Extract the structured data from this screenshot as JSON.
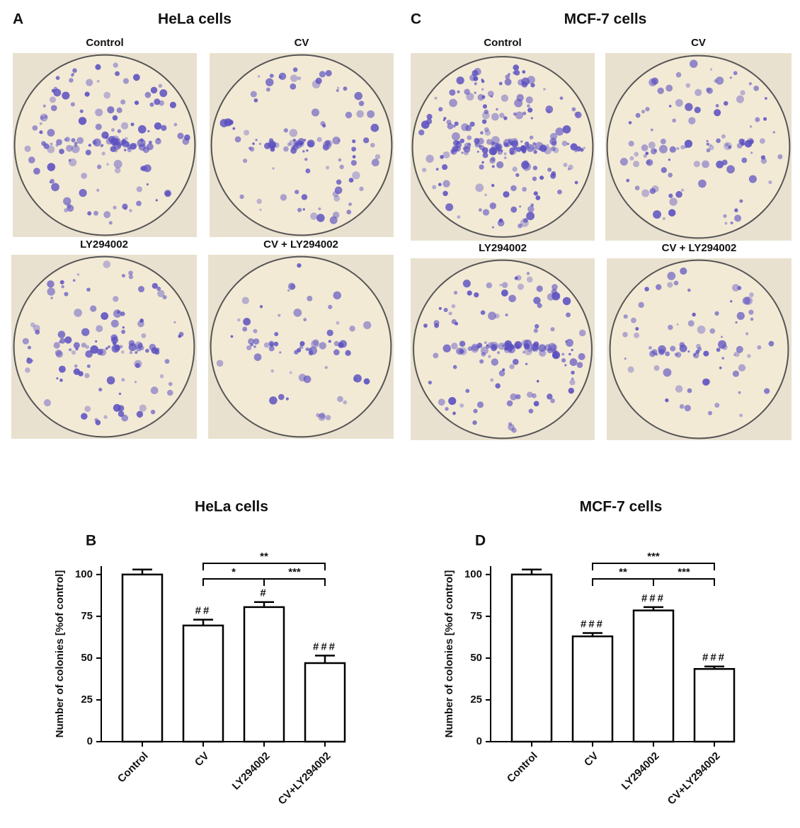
{
  "panels": [
    {
      "label": "A",
      "title": "HeLa cells",
      "images": [
        "Control",
        "CV",
        "LY294002",
        "CV + LY294002"
      ]
    },
    {
      "label": "C",
      "title": "MCF-7 cells",
      "images": [
        "Control",
        "CV",
        "LY294002",
        "CV + LY294002"
      ]
    }
  ],
  "chart_data": [
    {
      "type": "bar",
      "title": "HeLa cells",
      "panel_label": "B",
      "ylabel": "Number of colonies [%of control]",
      "categories": [
        "Control",
        "CV",
        "LY294002",
        "CV+LY294002"
      ],
      "values": [
        100,
        69.5,
        80.5,
        47
      ],
      "errors": [
        3,
        3.5,
        3,
        4.5
      ],
      "annotations": [
        null,
        "##",
        "#",
        "###"
      ],
      "significance": [
        {
          "from": 1,
          "to": 2,
          "label": "*"
        },
        {
          "from": 2,
          "to": 3,
          "label": "***"
        },
        {
          "from": 1,
          "to": 3,
          "label": "**"
        }
      ],
      "color": "#ffffff",
      "edgecolor": "#000000",
      "ylim": [
        0,
        105
      ],
      "yticks": [
        0,
        25,
        50,
        75,
        100
      ]
    },
    {
      "type": "bar",
      "title": "MCF-7 cells",
      "panel_label": "D",
      "ylabel": "Number of colonies [%of control]",
      "categories": [
        "Control",
        "CV",
        "LY294002",
        "CV+LY294002"
      ],
      "values": [
        100,
        63,
        78.5,
        43.5
      ],
      "errors": [
        3,
        2,
        2,
        1.5
      ],
      "annotations": [
        null,
        "###",
        "###",
        "###"
      ],
      "significance": [
        {
          "from": 1,
          "to": 2,
          "label": "**"
        },
        {
          "from": 2,
          "to": 3,
          "label": "***"
        },
        {
          "from": 1,
          "to": 3,
          "label": "***"
        }
      ],
      "color": "#ffffff",
      "edgecolor": "#000000",
      "ylim": [
        0,
        105
      ],
      "yticks": [
        0,
        25,
        50,
        75,
        100
      ]
    }
  ]
}
